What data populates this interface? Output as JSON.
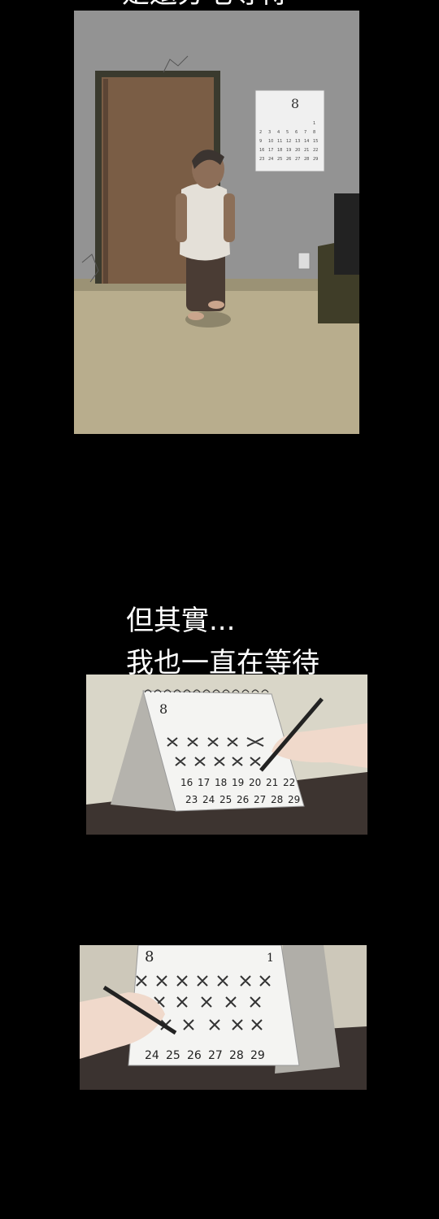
{
  "top_caption": "是還分毛等待",
  "caption": {
    "line1": "但其實...",
    "line2": "我也一直在等待"
  },
  "panel1": {
    "wall_calendar_month": "8",
    "calendar_rows": [
      [
        "",
        "",
        "",
        "",
        "",
        "",
        "1"
      ],
      [
        "2",
        "3",
        "4",
        "5",
        "6",
        "7",
        "8"
      ],
      [
        "9",
        "10",
        "11",
        "12",
        "13",
        "14",
        "15"
      ],
      [
        "16",
        "17",
        "18",
        "19",
        "20",
        "21",
        "22"
      ],
      [
        "23",
        "24",
        "25",
        "26",
        "27",
        "28",
        "29"
      ]
    ]
  },
  "panel2": {
    "calendar_month": "8",
    "row3": [
      "16",
      "17",
      "18",
      "19",
      "20",
      "21",
      "22"
    ],
    "row4": [
      "23",
      "24",
      "25",
      "26",
      "27",
      "28",
      "29"
    ]
  },
  "panel3": {
    "calendar_month": "8",
    "corner_day": "1",
    "row4": [
      "24",
      "25",
      "26",
      "27",
      "28",
      "29"
    ]
  }
}
